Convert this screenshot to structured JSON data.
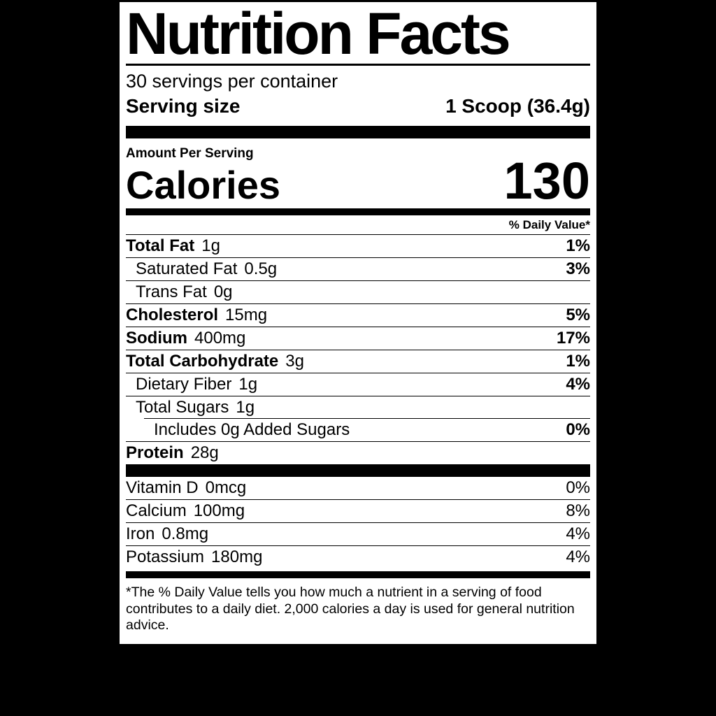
{
  "window": {
    "background_color": "#000000"
  },
  "label": {
    "panel_color": "#ffffff",
    "text_color": "#000000",
    "title": "Nutrition Facts",
    "servings_per_container": "30 servings per container",
    "serving_size": {
      "label": "Serving size",
      "value": "1 Scoop (36.4g)"
    },
    "amount_per_serving": "Amount Per Serving",
    "calories": {
      "label": "Calories",
      "value": "130"
    },
    "daily_value_header": "% Daily Value*",
    "nutrients": [
      {
        "name": "Total Fat",
        "amount": "1g",
        "dv": "1%",
        "bold": true,
        "indent": 0,
        "sep": "full"
      },
      {
        "name": "Saturated Fat",
        "amount": "0.5g",
        "dv": "3%",
        "bold": false,
        "indent": 1,
        "sep": "full"
      },
      {
        "name": "Trans Fat",
        "amount": "0g",
        "dv": "",
        "bold": false,
        "indent": 1,
        "sep": "full"
      },
      {
        "name": "Cholesterol",
        "amount": "15mg",
        "dv": "5%",
        "bold": true,
        "indent": 0,
        "sep": "full"
      },
      {
        "name": "Sodium",
        "amount": "400mg",
        "dv": "17%",
        "bold": true,
        "indent": 0,
        "sep": "full"
      },
      {
        "name": "Total Carbohydrate",
        "amount": "3g",
        "dv": "1%",
        "bold": true,
        "indent": 0,
        "sep": "full"
      },
      {
        "name": "Dietary Fiber",
        "amount": "1g",
        "dv": "4%",
        "bold": false,
        "indent": 1,
        "sep": "full"
      },
      {
        "name": "Total Sugars",
        "amount": "1g",
        "dv": "",
        "bold": false,
        "indent": 1,
        "sep": "full"
      },
      {
        "name": "Includes 0g Added Sugars",
        "amount": "",
        "dv": "0%",
        "bold": false,
        "indent": 2,
        "sep": "indent"
      },
      {
        "name": "Protein",
        "amount": "28g",
        "dv": "",
        "bold": true,
        "indent": 0,
        "sep": "full"
      }
    ],
    "vitamins": [
      {
        "name": "Vitamin D",
        "amount": "0mcg",
        "dv": "0%"
      },
      {
        "name": "Calcium",
        "amount": "100mg",
        "dv": "8%"
      },
      {
        "name": "Iron",
        "amount": "0.8mg",
        "dv": "4%"
      },
      {
        "name": "Potassium",
        "amount": "180mg",
        "dv": "4%"
      }
    ],
    "footnote": "*The % Daily Value tells you how much a nutrient in a serving of food\ncontributes to a daily diet. 2,000 calories a day is used for general nutrition\nadvice."
  }
}
